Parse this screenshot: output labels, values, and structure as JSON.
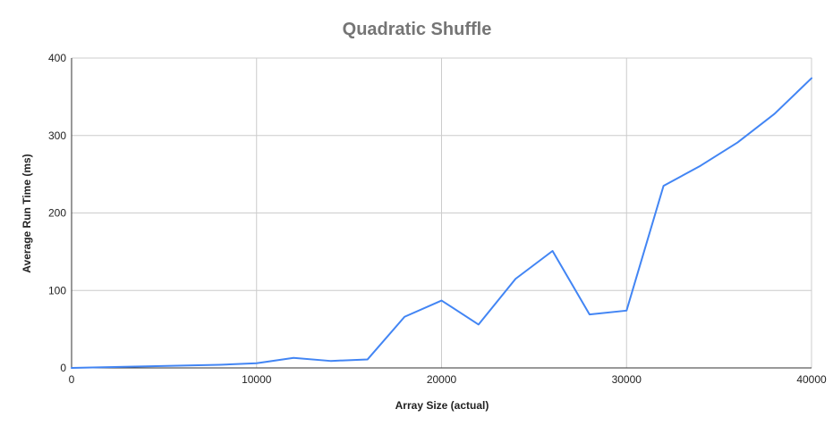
{
  "chart_data": {
    "type": "line",
    "title": "Quadratic Shuffle",
    "xlabel": "Array Size (actual)",
    "ylabel": "Average Run Time (ms)",
    "xlim": [
      0,
      40000
    ],
    "ylim": [
      0,
      400
    ],
    "x_ticks": [
      0,
      10000,
      20000,
      30000,
      40000
    ],
    "y_ticks": [
      0,
      100,
      200,
      300,
      400
    ],
    "grid": true,
    "legend": "none",
    "series": [
      {
        "color": "#4285f4",
        "x": [
          0,
          2000,
          4000,
          6000,
          8000,
          10000,
          12000,
          14000,
          16000,
          18000,
          20000,
          22000,
          24000,
          26000,
          28000,
          30000,
          32000,
          34000,
          36000,
          38000,
          40000
        ],
        "y": [
          0,
          1,
          2,
          3,
          4,
          6,
          13,
          9,
          11,
          66,
          87,
          56,
          115,
          151,
          69,
          74,
          235,
          261,
          291,
          328,
          374
        ]
      }
    ]
  }
}
